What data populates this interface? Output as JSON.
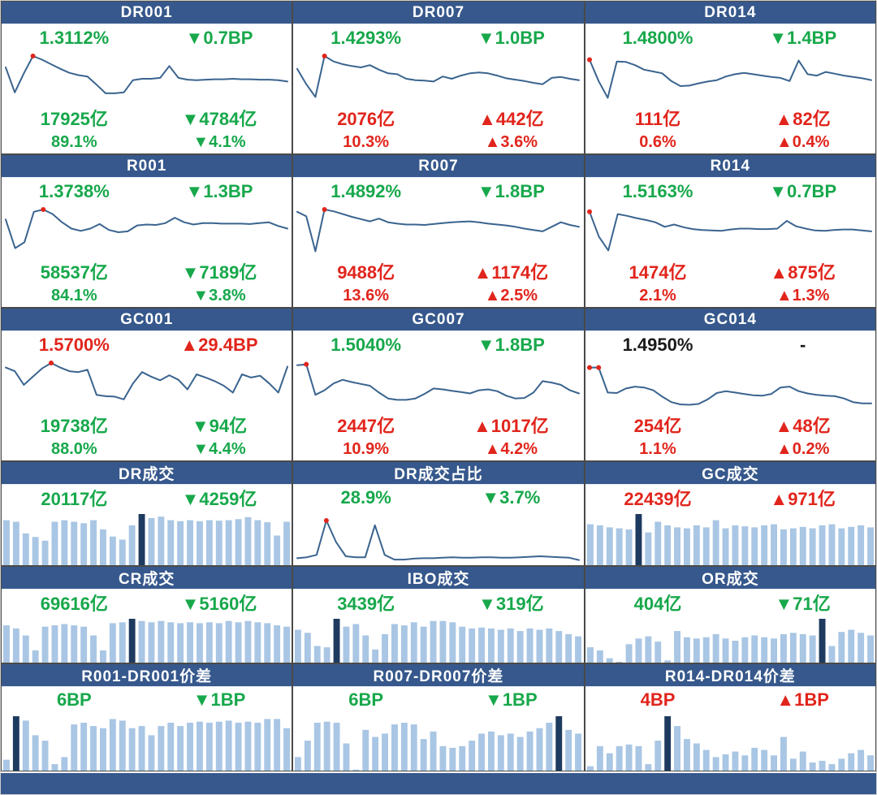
{
  "colors": {
    "header_bg": "#36588C",
    "footer_bg": "#36588C",
    "green": "#17A84B",
    "red": "#E1251C",
    "black": "#1a1a1a",
    "line": "#3A648F",
    "marker": "#E1251C",
    "bar_light": "#A9C6E4",
    "bar_dark": "#1E3A5F",
    "border": "#4a4a4a"
  },
  "chart_data": {
    "note_unit": "values are relative chart heights 0-100 (no axis labels shown in source)",
    "panels": [
      {
        "title": "DR001",
        "type": "line",
        "markers": [
          3
        ],
        "values": [
          75,
          20,
          62,
          100,
          92,
          82,
          72,
          63,
          58,
          55,
          37,
          18,
          18,
          20,
          47,
          50,
          50,
          52,
          78,
          52,
          48,
          47,
          48,
          49,
          49,
          50,
          49,
          49,
          48,
          48,
          47,
          44
        ],
        "stats": [
          [
            {
              "t": "1.3112%",
              "c": "green"
            },
            {
              "t": "▼0.7BP",
              "c": "green"
            }
          ],
          [
            {
              "t": "17925亿",
              "c": "green"
            },
            {
              "t": "▼4784亿",
              "c": "green"
            }
          ],
          [
            {
              "t": "89.1%",
              "c": "green"
            },
            {
              "t": "▼4.1%",
              "c": "green"
            }
          ]
        ]
      },
      {
        "title": "DR007",
        "type": "line",
        "markers": [
          3
        ],
        "values": [
          72,
          38,
          10,
          100,
          88,
          82,
          78,
          75,
          80,
          70,
          62,
          60,
          50,
          47,
          46,
          44,
          55,
          50,
          57,
          62,
          64,
          62,
          57,
          51,
          48,
          45,
          41,
          38,
          52,
          54,
          50,
          47
        ],
        "stats": [
          [
            {
              "t": "1.4293%",
              "c": "green"
            },
            {
              "t": "▼1.0BP",
              "c": "green"
            }
          ],
          [
            {
              "t": "2076亿",
              "c": "red"
            },
            {
              "t": "▲442亿",
              "c": "red"
            }
          ],
          [
            {
              "t": "10.3%",
              "c": "red"
            },
            {
              "t": "▲3.6%",
              "c": "red"
            }
          ]
        ]
      },
      {
        "title": "DR014",
        "type": "line",
        "markers": [
          0
        ],
        "values": [
          92,
          45,
          8,
          88,
          87,
          80,
          70,
          66,
          62,
          45,
          34,
          35,
          40,
          44,
          47,
          55,
          60,
          63,
          60,
          57,
          54,
          52,
          45,
          90,
          60,
          57,
          65,
          61,
          57,
          54,
          51,
          47
        ],
        "stats": [
          [
            {
              "t": "1.4800%",
              "c": "green"
            },
            {
              "t": "▼1.4BP",
              "c": "green"
            }
          ],
          [
            {
              "t": "111亿",
              "c": "red"
            },
            {
              "t": "▲82亿",
              "c": "red"
            }
          ],
          [
            {
              "t": "0.6%",
              "c": "red"
            },
            {
              "t": "▲0.4%",
              "c": "red"
            }
          ]
        ]
      },
      {
        "title": "R001",
        "type": "line",
        "markers": [
          4
        ],
        "values": [
          78,
          15,
          28,
          95,
          100,
          90,
          72,
          58,
          53,
          58,
          68,
          55,
          50,
          52,
          65,
          67,
          66,
          70,
          82,
          72,
          67,
          70,
          70,
          69,
          69,
          69,
          68,
          70,
          72,
          64,
          58
        ],
        "stats": [
          [
            {
              "t": "1.3738%",
              "c": "green"
            },
            {
              "t": "▼1.3BP",
              "c": "green"
            }
          ],
          [
            {
              "t": "58537亿",
              "c": "green"
            },
            {
              "t": "▼7189亿",
              "c": "green"
            }
          ],
          [
            {
              "t": "84.1%",
              "c": "green"
            },
            {
              "t": "▼3.8%",
              "c": "green"
            }
          ]
        ]
      },
      {
        "title": "R007",
        "type": "line",
        "markers": [
          3
        ],
        "values": [
          95,
          85,
          8,
          100,
          96,
          90,
          84,
          79,
          74,
          80,
          72,
          69,
          67,
          67,
          66,
          68,
          70,
          72,
          73,
          74,
          72,
          69,
          67,
          65,
          62,
          58,
          55,
          52,
          62,
          72,
          66,
          62
        ],
        "stats": [
          [
            {
              "t": "1.4892%",
              "c": "green"
            },
            {
              "t": "▼1.8BP",
              "c": "green"
            }
          ],
          [
            {
              "t": "9488亿",
              "c": "red"
            },
            {
              "t": "▲1174亿",
              "c": "red"
            }
          ],
          [
            {
              "t": "13.6%",
              "c": "red"
            },
            {
              "t": "▲2.5%",
              "c": "red"
            }
          ]
        ]
      },
      {
        "title": "R014",
        "type": "line",
        "markers": [
          0
        ],
        "values": [
          95,
          40,
          10,
          90,
          86,
          81,
          77,
          72,
          62,
          67,
          61,
          57,
          55,
          54,
          53,
          56,
          58,
          58,
          57,
          57,
          58,
          75,
          63,
          58,
          54,
          53,
          55,
          56,
          56,
          54,
          52
        ],
        "stats": [
          [
            {
              "t": "1.5163%",
              "c": "green"
            },
            {
              "t": "▼0.7BP",
              "c": "green"
            }
          ],
          [
            {
              "t": "1474亿",
              "c": "red"
            },
            {
              "t": "▲875亿",
              "c": "red"
            }
          ],
          [
            {
              "t": "2.1%",
              "c": "red"
            },
            {
              "t": "▲1.3%",
              "c": "red"
            }
          ]
        ]
      },
      {
        "title": "GC001",
        "type": "line",
        "markers": [
          5
        ],
        "values": [
          90,
          82,
          52,
          70,
          88,
          100,
          90,
          82,
          80,
          85,
          30,
          27,
          26,
          20,
          55,
          80,
          70,
          62,
          73,
          63,
          42,
          75,
          68,
          60,
          50,
          35,
          75,
          68,
          72,
          55,
          35,
          92
        ],
        "stats": [
          [
            {
              "t": "1.5700%",
              "c": "red"
            },
            {
              "t": "▲29.4BP",
              "c": "red"
            }
          ],
          [
            {
              "t": "19738亿",
              "c": "green"
            },
            {
              "t": "▼94亿",
              "c": "green"
            }
          ],
          [
            {
              "t": "88.0%",
              "c": "green"
            },
            {
              "t": "▼4.4%",
              "c": "green"
            }
          ]
        ]
      },
      {
        "title": "GC007",
        "type": "line",
        "markers": [
          1
        ],
        "values": [
          95,
          97,
          30,
          40,
          55,
          63,
          58,
          54,
          50,
          35,
          22,
          19,
          19,
          22,
          32,
          44,
          42,
          39,
          36,
          33,
          40,
          42,
          38,
          28,
          22,
          23,
          35,
          60,
          57,
          52,
          40,
          33
        ],
        "stats": [
          [
            {
              "t": "1.5040%",
              "c": "green"
            },
            {
              "t": "▼1.8BP",
              "c": "green"
            }
          ],
          [
            {
              "t": "2447亿",
              "c": "red"
            },
            {
              "t": "▲1017亿",
              "c": "red"
            }
          ],
          [
            {
              "t": "10.9%",
              "c": "red"
            },
            {
              "t": "▲4.2%",
              "c": "red"
            }
          ]
        ]
      },
      {
        "title": "GC014",
        "type": "line",
        "markers": [
          0,
          1
        ],
        "values": [
          90,
          90,
          35,
          34,
          44,
          48,
          46,
          40,
          26,
          14,
          9,
          8,
          10,
          20,
          34,
          38,
          35,
          32,
          29,
          28,
          32,
          46,
          48,
          38,
          33,
          30,
          28,
          27,
          22,
          14,
          11,
          11
        ],
        "stats": [
          [
            {
              "t": "1.4950%",
              "c": "black"
            },
            {
              "t": "-",
              "c": "black"
            }
          ],
          [
            {
              "t": "254亿",
              "c": "red"
            },
            {
              "t": "▲48亿",
              "c": "red"
            }
          ],
          [
            {
              "t": "1.1%",
              "c": "red"
            },
            {
              "t": "▲0.2%",
              "c": "red"
            }
          ]
        ]
      },
      {
        "title": "DR成交",
        "type": "bar",
        "dark_index": 14,
        "values": [
          88,
          85,
          62,
          55,
          48,
          85,
          88,
          85,
          82,
          88,
          70,
          56,
          50,
          78,
          100,
          92,
          95,
          88,
          86,
          88,
          86,
          88,
          87,
          88,
          90,
          94,
          88,
          84,
          58,
          85
        ],
        "stats": [
          [
            {
              "t": "20117亿",
              "c": "green"
            },
            {
              "t": "▼4259亿",
              "c": "green"
            }
          ]
        ]
      },
      {
        "title": "DR成交占比",
        "type": "line",
        "markers": [
          3
        ],
        "values": [
          8,
          10,
          15,
          88,
          42,
          12,
          10,
          10,
          78,
          15,
          5,
          5,
          7,
          8,
          8,
          9,
          10,
          9,
          9,
          10,
          10,
          9,
          9,
          10,
          11,
          12,
          11,
          10,
          9,
          4
        ],
        "stats": [
          [
            {
              "t": "28.9%",
              "c": "green"
            },
            {
              "t": "▼3.7%",
              "c": "green"
            }
          ]
        ]
      },
      {
        "title": "GC成交",
        "type": "bar",
        "dark_index": 5,
        "values": [
          80,
          78,
          74,
          72,
          70,
          100,
          64,
          85,
          78,
          74,
          72,
          78,
          74,
          88,
          72,
          78,
          76,
          74,
          78,
          80,
          70,
          72,
          75,
          72,
          78,
          80,
          72,
          75,
          78,
          74
        ],
        "stats": [
          [
            {
              "t": "22439亿",
              "c": "red"
            },
            {
              "t": "▲971亿",
              "c": "red"
            }
          ]
        ]
      },
      {
        "title": "CR成交",
        "type": "bar",
        "dark_index": 13,
        "values": [
          85,
          78,
          62,
          28,
          82,
          85,
          88,
          85,
          82,
          62,
          28,
          90,
          92,
          100,
          95,
          92,
          95,
          92,
          90,
          92,
          90,
          92,
          90,
          95,
          92,
          95,
          92,
          90,
          85,
          82
        ],
        "stats": [
          [
            {
              "t": "69616亿",
              "c": "green"
            },
            {
              "t": "▼5160亿",
              "c": "green"
            }
          ]
        ]
      },
      {
        "title": "IBO成交",
        "type": "bar",
        "dark_index": 4,
        "values": [
          75,
          68,
          38,
          35,
          100,
          82,
          88,
          62,
          30,
          65,
          88,
          85,
          92,
          82,
          95,
          95,
          92,
          82,
          78,
          80,
          78,
          75,
          78,
          72,
          78,
          75,
          78,
          72,
          65,
          60
        ],
        "stats": [
          [
            {
              "t": "3439亿",
              "c": "green"
            },
            {
              "t": "▼319亿",
              "c": "green"
            }
          ]
        ]
      },
      {
        "title": "OR成交",
        "type": "bar",
        "dark_index": 24,
        "values": [
          35,
          28,
          10,
          2,
          42,
          55,
          60,
          48,
          5,
          72,
          58,
          55,
          58,
          65,
          55,
          50,
          58,
          62,
          58,
          55,
          65,
          68,
          65,
          62,
          100,
          38,
          70,
          75,
          68,
          62
        ],
        "stats": [
          [
            {
              "t": "404亿",
              "c": "green"
            },
            {
              "t": "▼71亿",
              "c": "green"
            }
          ]
        ]
      },
      {
        "title": "R001-DR001价差",
        "type": "bar",
        "dark_index": 1,
        "values": [
          20,
          100,
          92,
          65,
          55,
          12,
          25,
          85,
          88,
          82,
          78,
          95,
          92,
          78,
          82,
          65,
          82,
          88,
          82,
          88,
          90,
          88,
          90,
          92,
          88,
          90,
          88,
          95,
          95,
          78
        ],
        "stats": [
          [
            {
              "t": "6BP",
              "c": "green"
            },
            {
              "t": "▼1BP",
              "c": "green"
            }
          ]
        ]
      },
      {
        "title": "R007-DR007价差",
        "type": "bar",
        "dark_index": 27,
        "values": [
          25,
          55,
          88,
          90,
          88,
          50,
          2,
          75,
          62,
          68,
          85,
          88,
          85,
          58,
          72,
          45,
          42,
          45,
          55,
          68,
          72,
          65,
          68,
          62,
          72,
          78,
          88,
          100,
          75,
          68
        ],
        "stats": [
          [
            {
              "t": "6BP",
              "c": "green"
            },
            {
              "t": "▼1BP",
              "c": "green"
            }
          ]
        ]
      },
      {
        "title": "R014-DR014价差",
        "type": "bar",
        "dark_index": 8,
        "values": [
          8,
          45,
          32,
          45,
          48,
          45,
          12,
          55,
          100,
          82,
          58,
          50,
          38,
          25,
          30,
          35,
          28,
          42,
          38,
          28,
          62,
          22,
          35,
          15,
          18,
          12,
          22,
          32,
          38,
          28
        ],
        "stats": [
          [
            {
              "t": "4BP",
              "c": "red"
            },
            {
              "t": "▲1BP",
              "c": "red"
            }
          ]
        ]
      }
    ]
  }
}
